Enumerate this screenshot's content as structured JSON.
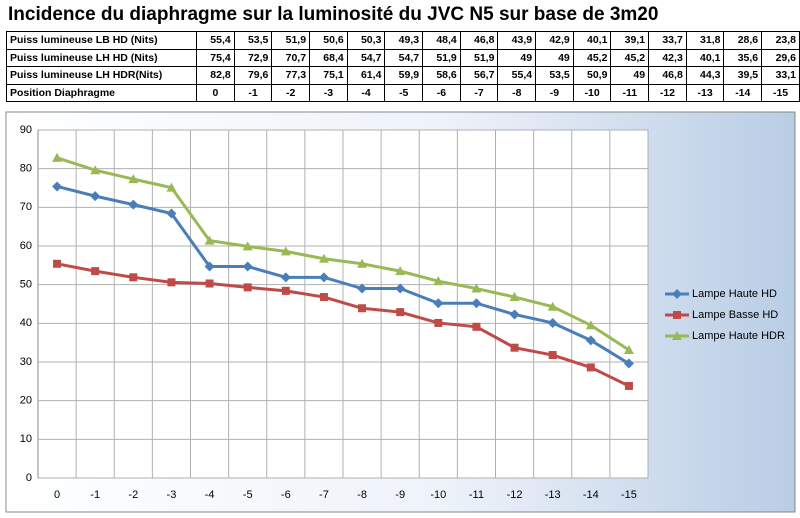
{
  "title": "Incidence du diaphragme sur la luminosité du JVC N5 sur base de 3m20",
  "table": {
    "rows": [
      [
        "Puiss lumineuse LB HD (Nits)",
        "55,4",
        "53,5",
        "51,9",
        "50,6",
        "50,3",
        "49,3",
        "48,4",
        "46,8",
        "43,9",
        "42,9",
        "40,1",
        "39,1",
        "33,7",
        "31,8",
        "28,6",
        "23,8"
      ],
      [
        "Puiss lumineuse LH HD (Nits)",
        "75,4",
        "72,9",
        "70,7",
        "68,4",
        "54,7",
        "54,7",
        "51,9",
        "51,9",
        "49",
        "49",
        "45,2",
        "45,2",
        "42,3",
        "40,1",
        "35,6",
        "29,6"
      ],
      [
        "Puiss lumineuse LH HDR(Nits)",
        "82,8",
        "79,6",
        "77,3",
        "75,1",
        "61,4",
        "59,9",
        "58,6",
        "56,7",
        "55,4",
        "53,5",
        "50,9",
        "49",
        "46,8",
        "44,3",
        "39,5",
        "33,1"
      ],
      [
        "Position Diaphragme",
        "0",
        "-1",
        "-2",
        "-3",
        "-4",
        "-5",
        "-6",
        "-7",
        "-8",
        "-9",
        "-10",
        "-11",
        "-12",
        "-13",
        "-14",
        "-15"
      ]
    ]
  },
  "chart_data": {
    "type": "line",
    "categories": [
      "0",
      "-1",
      "-2",
      "-3",
      "-4",
      "-5",
      "-6",
      "-7",
      "-8",
      "-9",
      "-10",
      "-11",
      "-12",
      "-13",
      "-14",
      "-15"
    ],
    "series": [
      {
        "name": "Lampe Haute HD",
        "color": "#4a7ebb",
        "marker": "diamond",
        "values": [
          75.4,
          72.9,
          70.7,
          68.4,
          54.7,
          54.7,
          51.9,
          51.9,
          49,
          49,
          45.2,
          45.2,
          42.3,
          40.1,
          35.6,
          29.6
        ]
      },
      {
        "name": "Lampe Basse HD",
        "color": "#be4b48",
        "marker": "square",
        "values": [
          55.4,
          53.5,
          51.9,
          50.6,
          50.3,
          49.3,
          48.4,
          46.8,
          43.9,
          42.9,
          40.1,
          39.1,
          33.7,
          31.8,
          28.6,
          23.8
        ]
      },
      {
        "name": "Lampe Haute HDR",
        "color": "#98b954",
        "marker": "triangle",
        "values": [
          82.8,
          79.6,
          77.3,
          75.1,
          61.4,
          59.9,
          58.6,
          56.7,
          55.4,
          53.5,
          50.9,
          49,
          46.8,
          44.3,
          39.5,
          33.1
        ]
      }
    ],
    "ylim": [
      0,
      90
    ],
    "yticks": [
      0,
      10,
      20,
      30,
      40,
      50,
      60,
      70,
      80,
      90
    ],
    "grid": true,
    "legend": "right"
  }
}
